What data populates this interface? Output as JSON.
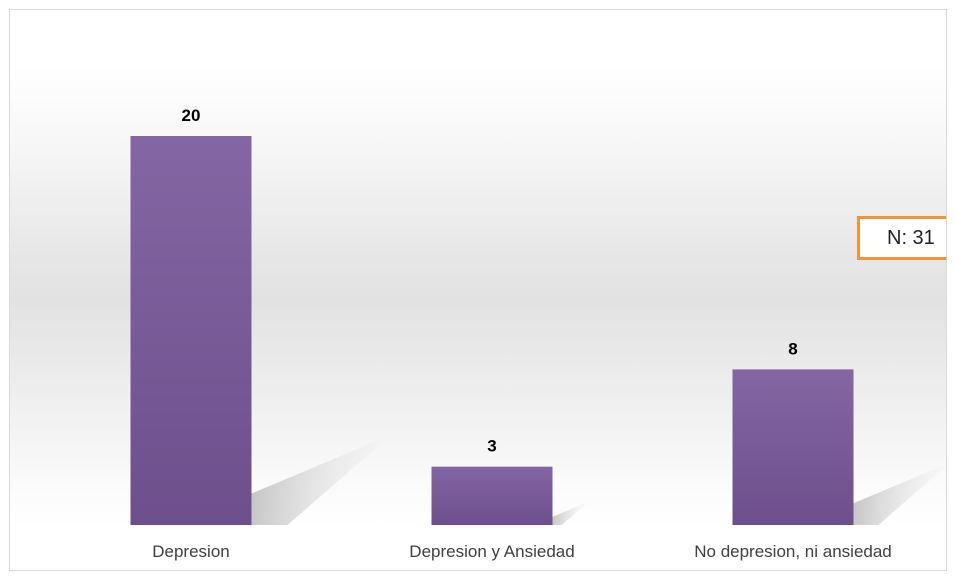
{
  "chart_data": {
    "type": "bar",
    "categories": [
      "Depresion",
      "Depresion y Ansiedad",
      "No depresion, ni ansiedad"
    ],
    "values": [
      20,
      3,
      8
    ],
    "data_labels": [
      "20",
      "3",
      "8"
    ],
    "title": "",
    "xlabel": "",
    "ylabel": "",
    "ylim": [
      0,
      20
    ],
    "grid": false,
    "legend": "none",
    "bar_color": "#7a5a9c",
    "annotation": "N: 31"
  }
}
